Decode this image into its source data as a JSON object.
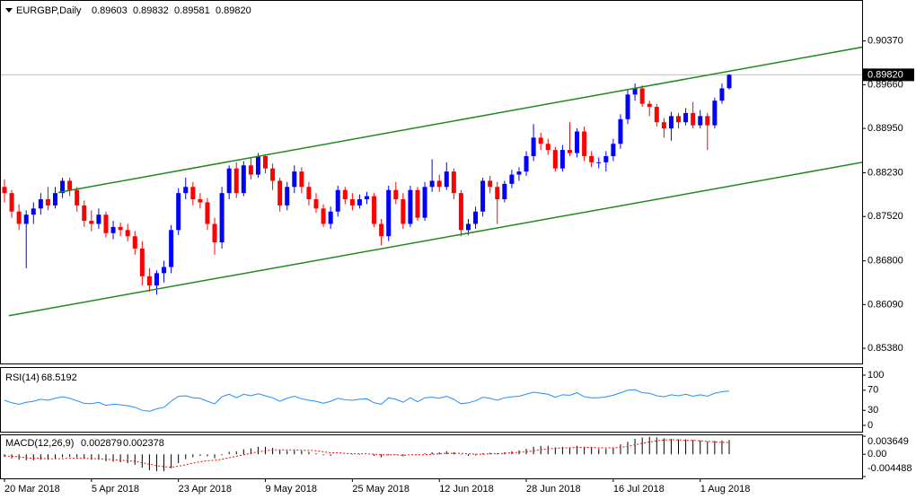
{
  "chart_data": [
    {
      "type": "candlestick",
      "title": "EURGBP,Daily",
      "categories": [
        "20 Mar 2018",
        null,
        null,
        null,
        null,
        null,
        null,
        null,
        null,
        null,
        null,
        null,
        "5 Apr 2018",
        null,
        null,
        null,
        null,
        null,
        null,
        null,
        null,
        null,
        null,
        null,
        "23 Apr 2018",
        null,
        null,
        null,
        null,
        null,
        null,
        null,
        null,
        null,
        null,
        null,
        "9 May 2018",
        null,
        null,
        null,
        null,
        null,
        null,
        null,
        null,
        null,
        null,
        null,
        "25 May 2018",
        null,
        null,
        null,
        null,
        null,
        null,
        null,
        null,
        null,
        null,
        null,
        "12 Jun 2018",
        null,
        null,
        null,
        null,
        null,
        null,
        null,
        null,
        null,
        null,
        null,
        "28 Jun 2018",
        null,
        null,
        null,
        null,
        null,
        null,
        null,
        null,
        null,
        null,
        null,
        "16 Jul 2018",
        null,
        null,
        null,
        null,
        null,
        null,
        null,
        null,
        null,
        null,
        null,
        "1 Aug 2018",
        null,
        null,
        null,
        null
      ],
      "candles": [
        [
          0.88,
          0.8812,
          0.8775,
          0.879
        ],
        [
          0.879,
          0.8795,
          0.875,
          0.876
        ],
        [
          0.876,
          0.8772,
          0.873,
          0.874
        ],
        [
          0.874,
          0.8762,
          0.8668,
          0.8755
        ],
        [
          0.8755,
          0.8775,
          0.874,
          0.8765
        ],
        [
          0.8765,
          0.879,
          0.8755,
          0.878
        ],
        [
          0.878,
          0.88,
          0.8762,
          0.877
        ],
        [
          0.877,
          0.88,
          0.8765,
          0.879
        ],
        [
          0.879,
          0.8815,
          0.8782,
          0.881
        ],
        [
          0.881,
          0.8815,
          0.8785,
          0.8795
        ],
        [
          0.8795,
          0.88,
          0.876,
          0.877
        ],
        [
          0.877,
          0.8778,
          0.8735,
          0.8745
        ],
        [
          0.8745,
          0.8762,
          0.8728,
          0.874
        ],
        [
          0.874,
          0.8765,
          0.8732,
          0.8755
        ],
        [
          0.8755,
          0.876,
          0.8718,
          0.8725
        ],
        [
          0.8725,
          0.8745,
          0.8715,
          0.8735
        ],
        [
          0.8735,
          0.8742,
          0.872,
          0.873
        ],
        [
          0.873,
          0.874,
          0.8712,
          0.872
        ],
        [
          0.872,
          0.8728,
          0.869,
          0.87
        ],
        [
          0.87,
          0.8712,
          0.864,
          0.8655
        ],
        [
          0.8655,
          0.8668,
          0.863,
          0.864
        ],
        [
          0.864,
          0.8665,
          0.8625,
          0.866
        ],
        [
          0.866,
          0.868,
          0.8645,
          0.867
        ],
        [
          0.867,
          0.8738,
          0.866,
          0.873
        ],
        [
          0.873,
          0.8798,
          0.8722,
          0.879
        ],
        [
          0.879,
          0.8815,
          0.878,
          0.88
        ],
        [
          0.88,
          0.8808,
          0.877,
          0.878
        ],
        [
          0.878,
          0.879,
          0.8765,
          0.8775
        ],
        [
          0.8775,
          0.8782,
          0.873,
          0.874
        ],
        [
          0.874,
          0.875,
          0.869,
          0.871
        ],
        [
          0.871,
          0.88,
          0.87,
          0.879
        ],
        [
          0.879,
          0.8835,
          0.878,
          0.883
        ],
        [
          0.883,
          0.884,
          0.8782,
          0.879
        ],
        [
          0.879,
          0.8842,
          0.8785,
          0.8835
        ],
        [
          0.8835,
          0.8848,
          0.8812,
          0.882
        ],
        [
          0.882,
          0.8855,
          0.8815,
          0.885
        ],
        [
          0.885,
          0.8852,
          0.8822,
          0.883
        ],
        [
          0.883,
          0.8838,
          0.8795,
          0.881
        ],
        [
          0.881,
          0.8815,
          0.876,
          0.877
        ],
        [
          0.877,
          0.8808,
          0.8762,
          0.88
        ],
        [
          0.88,
          0.8835,
          0.879,
          0.8825
        ],
        [
          0.8825,
          0.8832,
          0.879,
          0.88
        ],
        [
          0.88,
          0.8808,
          0.877,
          0.878
        ],
        [
          0.878,
          0.879,
          0.8758,
          0.8765
        ],
        [
          0.8765,
          0.8772,
          0.8735,
          0.874
        ],
        [
          0.874,
          0.8768,
          0.8732,
          0.876
        ],
        [
          0.876,
          0.8802,
          0.8752,
          0.8795
        ],
        [
          0.8795,
          0.88,
          0.8772,
          0.878
        ],
        [
          0.878,
          0.879,
          0.8762,
          0.877
        ],
        [
          0.877,
          0.8788,
          0.8765,
          0.878
        ],
        [
          0.878,
          0.8792,
          0.8772,
          0.8785
        ],
        [
          0.8785,
          0.879,
          0.8735,
          0.874
        ],
        [
          0.874,
          0.8748,
          0.8705,
          0.872
        ],
        [
          0.872,
          0.8802,
          0.8712,
          0.8795
        ],
        [
          0.8795,
          0.8808,
          0.8772,
          0.878
        ],
        [
          0.878,
          0.879,
          0.8732,
          0.874
        ],
        [
          0.874,
          0.8802,
          0.8735,
          0.8795
        ],
        [
          0.8795,
          0.88,
          0.8745,
          0.875
        ],
        [
          0.875,
          0.8808,
          0.8745,
          0.88
        ],
        [
          0.88,
          0.8845,
          0.8792,
          0.881
        ],
        [
          0.881,
          0.882,
          0.8792,
          0.88
        ],
        [
          0.88,
          0.884,
          0.8795,
          0.8825
        ],
        [
          0.8825,
          0.883,
          0.878,
          0.879
        ],
        [
          0.879,
          0.8795,
          0.872,
          0.873
        ],
        [
          0.873,
          0.8748,
          0.8722,
          0.874
        ],
        [
          0.874,
          0.8768,
          0.8732,
          0.876
        ],
        [
          0.876,
          0.8815,
          0.8752,
          0.881
        ],
        [
          0.881,
          0.8818,
          0.879,
          0.88
        ],
        [
          0.88,
          0.8808,
          0.874,
          0.878
        ],
        [
          0.878,
          0.881,
          0.8775,
          0.8805
        ],
        [
          0.8805,
          0.8828,
          0.8798,
          0.882
        ],
        [
          0.882,
          0.8832,
          0.881,
          0.8825
        ],
        [
          0.8825,
          0.8858,
          0.8818,
          0.885
        ],
        [
          0.885,
          0.8902,
          0.8842,
          0.888
        ],
        [
          0.888,
          0.8888,
          0.886,
          0.887
        ],
        [
          0.887,
          0.8878,
          0.8852,
          0.886
        ],
        [
          0.886,
          0.8865,
          0.8825,
          0.883
        ],
        [
          0.883,
          0.8868,
          0.8825,
          0.886
        ],
        [
          0.886,
          0.8905,
          0.885,
          0.8855
        ],
        [
          0.8855,
          0.8895,
          0.8848,
          0.889
        ],
        [
          0.889,
          0.8898,
          0.8842,
          0.885
        ],
        [
          0.885,
          0.8858,
          0.8832,
          0.884
        ],
        [
          0.884,
          0.8848,
          0.883,
          0.884
        ],
        [
          0.884,
          0.8858,
          0.8825,
          0.885
        ],
        [
          0.885,
          0.8878,
          0.8842,
          0.887
        ],
        [
          0.887,
          0.8918,
          0.8862,
          0.891
        ],
        [
          0.891,
          0.8958,
          0.8902,
          0.895
        ],
        [
          0.895,
          0.8968,
          0.894,
          0.896
        ],
        [
          0.896,
          0.8965,
          0.893,
          0.8935
        ],
        [
          0.8935,
          0.894,
          0.8915,
          0.893
        ],
        [
          0.893,
          0.8935,
          0.8898,
          0.8905
        ],
        [
          0.8905,
          0.8912,
          0.888,
          0.8895
        ],
        [
          0.8895,
          0.8922,
          0.8875,
          0.8915
        ],
        [
          0.8915,
          0.892,
          0.8895,
          0.8905
        ],
        [
          0.8905,
          0.8928,
          0.89,
          0.892
        ],
        [
          0.892,
          0.8938,
          0.8895,
          0.89
        ],
        [
          0.89,
          0.8925,
          0.8895,
          0.8915
        ],
        [
          0.8915,
          0.892,
          0.886,
          0.89
        ],
        [
          0.89,
          0.8945,
          0.8895,
          0.894
        ],
        [
          0.894,
          0.8968,
          0.8935,
          0.896
        ],
        [
          0.89603,
          0.89832,
          0.89581,
          0.8982
        ]
      ],
      "up_color": "#0000ff",
      "down_color": "#ff0000",
      "ylim": [
        0.85134,
        0.9102
      ],
      "yticks": [
        {
          "value": 0.9037,
          "label": "0.90370"
        },
        {
          "value": 0.8966,
          "label": "0.89660"
        },
        {
          "value": 0.8895,
          "label": "0.88950"
        },
        {
          "value": 0.8823,
          "label": "0.88230"
        },
        {
          "value": 0.8752,
          "label": "0.87520"
        },
        {
          "value": 0.868,
          "label": "0.86800"
        },
        {
          "value": 0.8609,
          "label": "0.86090"
        },
        {
          "value": 0.8538,
          "label": "0.85380"
        }
      ],
      "last_price": {
        "value": 0.8982,
        "label": "0.89820"
      },
      "channel": {
        "color": "#1f8a1f",
        "lines": [
          {
            "x": [
              7.4,
              118.4
            ],
            "y": [
              0.8791,
              0.9027
            ]
          },
          {
            "x": [
              0.6,
              118.4
            ],
            "y": [
              0.8591,
              0.884
            ]
          }
        ]
      }
    },
    {
      "type": "line",
      "title": "RSI(14)",
      "color": "#1e90ff",
      "values": [
        50,
        45,
        42,
        46,
        48,
        52,
        50,
        54,
        57,
        54,
        49,
        44,
        43,
        46,
        40,
        42,
        41,
        39,
        36,
        30,
        28,
        33,
        36,
        48,
        58,
        59,
        55,
        54,
        48,
        43,
        57,
        62,
        55,
        62,
        59,
        63,
        59,
        55,
        48,
        54,
        58,
        53,
        50,
        48,
        44,
        48,
        54,
        51,
        50,
        52,
        53,
        45,
        42,
        55,
        52,
        46,
        55,
        47,
        55,
        56,
        54,
        58,
        52,
        43,
        45,
        49,
        56,
        54,
        50,
        55,
        57,
        58,
        62,
        66,
        64,
        62,
        56,
        61,
        60,
        65,
        57,
        55,
        55,
        57,
        60,
        65,
        70,
        71,
        65,
        64,
        59,
        57,
        61,
        59,
        62,
        58,
        61,
        58,
        64,
        67,
        68.5192
      ],
      "ylim": [
        0,
        100
      ],
      "yticks": [
        100,
        70,
        30,
        0
      ]
    },
    {
      "type": "macd",
      "title": "MACD(12,26,9)",
      "color": "#000000",
      "signal_color": "#ff0000",
      "values": [
        -0.0005,
        -0.0008,
        -0.0011,
        -0.0012,
        -0.0012,
        -0.0011,
        -0.0011,
        -0.0009,
        -0.0006,
        -0.0005,
        -0.0006,
        -0.0009,
        -0.0011,
        -0.0011,
        -0.0014,
        -0.0015,
        -0.0016,
        -0.0018,
        -0.0021,
        -0.0027,
        -0.0032,
        -0.0034,
        -0.0034,
        -0.0028,
        -0.0018,
        -0.001,
        -0.0006,
        -0.0003,
        -0.0004,
        -0.0008,
        -0.0002,
        0.0005,
        0.0006,
        0.001,
        0.0012,
        0.0015,
        0.0015,
        0.0013,
        0.0008,
        0.0007,
        0.0008,
        0.0007,
        0.0005,
        0.0002,
        -0.0002,
        -0.0003,
        0,
        0,
        -0.0001,
        -0.0001,
        0,
        -0.0003,
        -0.0006,
        -0.0002,
        -0.0001,
        -0.0004,
        0,
        -0.0001,
        0.0002,
        0.0004,
        0.0004,
        0.0006,
        0.0004,
        -0.0001,
        -0.0003,
        -0.0002,
        0.0002,
        0.0003,
        0.0002,
        0.0004,
        0.0006,
        0.0008,
        0.0011,
        0.0015,
        0.0017,
        0.0017,
        0.0014,
        0.0015,
        0.0014,
        0.0017,
        0.0015,
        0.0013,
        0.0011,
        0.0011,
        0.0012,
        0.002,
        0.0025,
        0.0031,
        0.0034,
        0.0035,
        0.0034,
        0.0032,
        0.0031,
        0.003,
        0.003,
        0.0029,
        0.0028,
        0.0026,
        0.0027,
        0.0028,
        0.002879
      ],
      "signal": [
        -0.0003,
        -0.0004,
        -0.0005,
        -0.0007,
        -0.0008,
        -0.0008,
        -0.0009,
        -0.0009,
        -0.0009,
        -0.0008,
        -0.0008,
        -0.0008,
        -0.0009,
        -0.0009,
        -0.001,
        -0.0011,
        -0.0012,
        -0.0013,
        -0.0014,
        -0.0017,
        -0.002,
        -0.0023,
        -0.0025,
        -0.0026,
        -0.0024,
        -0.0021,
        -0.0018,
        -0.0015,
        -0.0013,
        -0.0012,
        -0.001,
        -0.0007,
        -0.0004,
        -0.0001,
        0.0002,
        0.0005,
        0.0007,
        0.0009,
        0.0009,
        0.0009,
        0.0009,
        0.0008,
        0.0008,
        0.0007,
        0.0005,
        0.0003,
        0.0003,
        0.0002,
        0.0001,
        0.0001,
        0.0001,
        0,
        -0.0001,
        -0.0001,
        -0.0001,
        -0.0002,
        -0.0001,
        -0.0001,
        -0.0001,
        0,
        0.0001,
        0.0002,
        0.0002,
        0.0002,
        0.0001,
        0,
        0,
        0.0001,
        0.0001,
        0.0002,
        0.0003,
        0.0004,
        0.0005,
        0.0007,
        0.0009,
        0.0011,
        0.0012,
        0.0013,
        0.0013,
        0.0014,
        0.0014,
        0.0014,
        0.0013,
        0.0013,
        0.0013,
        0.0014,
        0.0016,
        0.0019,
        0.0022,
        0.0025,
        0.0027,
        0.0029,
        0.0029,
        0.0029,
        0.0028,
        0.0028,
        0.0027,
        0.0026,
        0.0025,
        0.0024,
        0.002378
      ],
      "ylim": [
        -0.004488,
        0.003649
      ],
      "yticks": [
        0.003649,
        {
          "value": 0,
          "label": "0.00"
        },
        -0.004488
      ]
    }
  ]
}
